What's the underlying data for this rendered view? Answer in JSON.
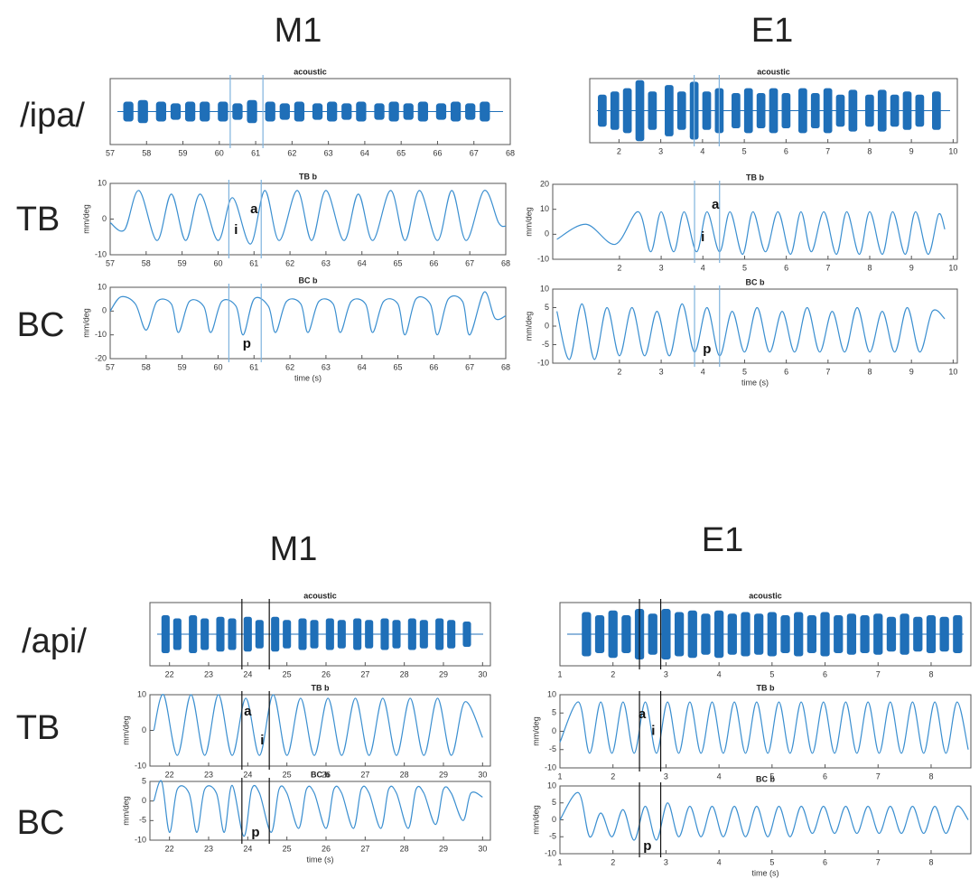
{
  "panels": [
    {
      "title": "M1",
      "row_labels": [
        "/ipa/",
        "TB",
        "BC"
      ]
    },
    {
      "title": "E1"
    },
    {
      "title": "M1",
      "row_labels": [
        "/api/",
        "TB",
        "BC"
      ]
    },
    {
      "title": "E1"
    }
  ],
  "chart_data": [
    {
      "type": "waveform",
      "title": "acoustic",
      "color": "#1f6fb8",
      "vline_color": "#7fb3de",
      "x": [
        57.5,
        57.9,
        58.4,
        58.8,
        59.2,
        59.6,
        60.1,
        60.5,
        60.9,
        61.4,
        61.8,
        62.2,
        62.7,
        63.1,
        63.5,
        63.9,
        64.4,
        64.8,
        65.2,
        65.6,
        66.1,
        66.5,
        66.9,
        67.3
      ],
      "values": [
        0.3,
        0.35,
        0.3,
        0.25,
        0.3,
        0.3,
        0.3,
        0.25,
        0.35,
        0.3,
        0.25,
        0.3,
        0.25,
        0.3,
        0.25,
        0.3,
        0.25,
        0.3,
        0.25,
        0.3,
        0.25,
        0.3,
        0.25,
        0.3
      ],
      "xlim": [
        57,
        68
      ],
      "ylim": [
        -1,
        1
      ],
      "xticks": [
        57,
        58,
        59,
        60,
        61,
        62,
        63,
        64,
        65,
        66,
        67,
        68
      ],
      "vlines": [
        60.3,
        61.2
      ]
    },
    {
      "type": "line",
      "title": "TB b",
      "ylabel": "mm/deg",
      "color": "#3b8fd0",
      "vline_color": "#7fb3de",
      "x": [
        57,
        57.4,
        57.8,
        58.3,
        58.7,
        59.1,
        59.5,
        60.0,
        60.4,
        60.9,
        61.3,
        61.7,
        62.2,
        62.6,
        63.0,
        63.5,
        63.9,
        64.3,
        64.8,
        65.2,
        65.6,
        66.1,
        66.5,
        66.9,
        67.4,
        67.8,
        68
      ],
      "values": [
        -1,
        -3,
        8,
        -6,
        7,
        -6,
        7,
        -6,
        6,
        -7,
        8,
        -6,
        8,
        -6,
        8,
        -6,
        7,
        -6,
        8,
        -6,
        8,
        -6,
        8,
        -6,
        8,
        -1,
        -2
      ],
      "xlim": [
        57,
        68
      ],
      "ylim": [
        -10,
        10
      ],
      "xticks": [
        57,
        58,
        59,
        60,
        61,
        62,
        63,
        64,
        65,
        66,
        67,
        68
      ],
      "yticks": [
        -10,
        0,
        10
      ],
      "vlines": [
        60.3,
        61.2
      ],
      "annotations": [
        {
          "text": "a",
          "x": 61.0,
          "y": 2.7
        },
        {
          "text": "i",
          "x": 60.5,
          "y": -3.2
        }
      ]
    },
    {
      "type": "line",
      "title": "BC b",
      "ylabel": "mm/deg",
      "xlabel": "time (s)",
      "color": "#3b8fd0",
      "vline_color": "#7fb3de",
      "x": [
        57,
        57.3,
        57.7,
        58.0,
        58.3,
        58.7,
        58.9,
        59.2,
        59.6,
        59.8,
        60.1,
        60.5,
        60.7,
        61.0,
        61.4,
        61.6,
        61.9,
        62.3,
        62.5,
        62.8,
        63.2,
        63.4,
        63.7,
        64.1,
        64.3,
        64.6,
        65.0,
        65.2,
        65.5,
        65.9,
        66.1,
        66.4,
        66.8,
        67.0,
        67.4,
        67.7,
        68
      ],
      "values": [
        0,
        6,
        3,
        -8,
        4,
        3,
        -9,
        4,
        2,
        -9,
        4,
        2,
        -10,
        5,
        2,
        -9,
        4,
        3,
        -9,
        4,
        3,
        -9,
        4,
        3,
        -9,
        4,
        3,
        -10,
        5,
        3,
        -10,
        5,
        4,
        -10,
        8,
        -3,
        -2
      ],
      "xlim": [
        57,
        68
      ],
      "ylim": [
        -20,
        10
      ],
      "xticks": [
        57,
        58,
        59,
        60,
        61,
        62,
        63,
        64,
        65,
        66,
        67,
        68
      ],
      "yticks": [
        -20,
        -10,
        0,
        10
      ],
      "vlines": [
        60.3,
        61.2
      ],
      "annotations": [
        {
          "text": "p",
          "x": 60.8,
          "y": -13.9
        }
      ]
    },
    {
      "type": "waveform",
      "title": "acoustic",
      "color": "#1f6fb8",
      "vline_color": "#7fb3de",
      "x": [
        1.6,
        1.9,
        2.2,
        2.5,
        2.8,
        3.2,
        3.5,
        3.8,
        4.1,
        4.4,
        4.8,
        5.1,
        5.4,
        5.7,
        6.0,
        6.4,
        6.7,
        7.0,
        7.3,
        7.6,
        8.0,
        8.3,
        8.6,
        8.9,
        9.2,
        9.6
      ],
      "values": [
        0.5,
        0.6,
        0.7,
        0.95,
        0.6,
        0.8,
        0.6,
        0.9,
        0.6,
        0.7,
        0.55,
        0.7,
        0.55,
        0.7,
        0.55,
        0.7,
        0.55,
        0.7,
        0.5,
        0.65,
        0.5,
        0.65,
        0.5,
        0.6,
        0.5,
        0.6
      ],
      "xlim": [
        1.3,
        10.1
      ],
      "ylim": [
        -1,
        1
      ],
      "xticks": [
        2,
        3,
        4,
        5,
        6,
        7,
        8,
        9,
        10
      ],
      "vlines": [
        3.8,
        4.4
      ]
    },
    {
      "type": "line",
      "title": "TB b",
      "ylabel": "mm/deg",
      "color": "#3b8fd0",
      "vline_color": "#7fb3de",
      "x": [
        0.5,
        1.2,
        1.9,
        2.45,
        2.75,
        3.0,
        3.3,
        3.55,
        3.85,
        4.1,
        4.4,
        4.65,
        4.95,
        5.2,
        5.5,
        5.8,
        6.1,
        6.35,
        6.6,
        6.9,
        7.2,
        7.45,
        7.75,
        8.0,
        8.3,
        8.55,
        8.85,
        9.1,
        9.4,
        9.65,
        9.8
      ],
      "values": [
        -2,
        4,
        -4,
        9,
        -7,
        9,
        -7,
        9,
        -7,
        9,
        -7,
        9,
        -8,
        9,
        -7,
        9,
        -8,
        9,
        -7,
        9,
        -8,
        9,
        -8,
        9,
        -8,
        9,
        -8,
        9,
        -8,
        8,
        2
      ],
      "xlim": [
        0.4,
        10.1
      ],
      "ylim": [
        -10,
        20
      ],
      "xticks": [
        2,
        3,
        4,
        5,
        6,
        7,
        8,
        9,
        10
      ],
      "yticks": [
        -10,
        0,
        10,
        20
      ],
      "vlines": [
        3.8,
        4.4
      ],
      "annotations": [
        {
          "text": "a",
          "x": 4.3,
          "y": 11.7
        },
        {
          "text": "i",
          "x": 4.0,
          "y": -1.3
        }
      ]
    },
    {
      "type": "line",
      "title": "BC b",
      "ylabel": "mm/deg",
      "xlabel": "time (s)",
      "color": "#3b8fd0",
      "vline_color": "#7fb3de",
      "x": [
        0.5,
        0.8,
        1.1,
        1.4,
        1.7,
        2.0,
        2.3,
        2.6,
        2.9,
        3.2,
        3.5,
        3.8,
        4.1,
        4.4,
        4.7,
        5.0,
        5.3,
        5.6,
        5.9,
        6.2,
        6.5,
        6.8,
        7.1,
        7.4,
        7.7,
        8.0,
        8.3,
        8.6,
        8.9,
        9.2,
        9.5,
        9.8
      ],
      "values": [
        4,
        -9,
        6,
        -9,
        5,
        -8,
        5,
        -8,
        4,
        -8,
        6,
        -7,
        5,
        -8,
        4,
        -7,
        5,
        -7,
        4,
        -7,
        5,
        -7,
        4,
        -7,
        5,
        -7,
        4,
        -7,
        5,
        -7,
        4,
        2
      ],
      "xlim": [
        0.4,
        10.1
      ],
      "ylim": [
        -10,
        10
      ],
      "xticks": [
        2,
        3,
        4,
        5,
        6,
        7,
        8,
        9,
        10
      ],
      "yticks": [
        -10,
        -5,
        0,
        5,
        10
      ],
      "vlines": [
        3.8,
        4.4
      ],
      "annotations": [
        {
          "text": "p",
          "x": 4.1,
          "y": -6.3
        }
      ]
    },
    {
      "type": "waveform",
      "title": "acoustic",
      "color": "#1f6fb8",
      "vline_color": "#111111",
      "x": [
        21.9,
        22.2,
        22.6,
        22.9,
        23.3,
        23.6,
        24.0,
        24.3,
        24.7,
        25.0,
        25.4,
        25.7,
        26.1,
        26.4,
        26.8,
        27.1,
        27.5,
        27.8,
        28.2,
        28.5,
        28.9,
        29.2,
        29.6
      ],
      "values": [
        0.6,
        0.5,
        0.6,
        0.5,
        0.55,
        0.5,
        0.55,
        0.45,
        0.55,
        0.45,
        0.5,
        0.45,
        0.5,
        0.45,
        0.5,
        0.45,
        0.5,
        0.45,
        0.5,
        0.45,
        0.5,
        0.45,
        0.4
      ],
      "xlim": [
        21.5,
        30.2
      ],
      "ylim": [
        -1,
        1
      ],
      "xticks": [
        22,
        23,
        24,
        25,
        26,
        27,
        28,
        29,
        30
      ],
      "vlines": [
        23.85,
        24.55
      ]
    },
    {
      "type": "line",
      "title": "TB b",
      "ylabel": "mm/deg",
      "color": "#3b8fd0",
      "vline_color": "#111111",
      "x": [
        21.6,
        21.85,
        22.2,
        22.55,
        22.9,
        23.25,
        23.6,
        23.95,
        24.3,
        24.65,
        25.0,
        25.35,
        25.7,
        26.05,
        26.4,
        26.75,
        27.1,
        27.45,
        27.8,
        28.15,
        28.5,
        28.85,
        29.2,
        29.55,
        30.0
      ],
      "values": [
        0,
        10,
        -7,
        10,
        -7,
        10,
        -7,
        9,
        -7,
        10,
        -7,
        9,
        -7,
        9,
        -7,
        9,
        -7,
        9,
        -7,
        9,
        -7,
        9,
        -7,
        8,
        -2
      ],
      "xlim": [
        21.5,
        30.2
      ],
      "ylim": [
        -10,
        10
      ],
      "xticks": [
        22,
        23,
        24,
        25,
        26,
        27,
        28,
        29,
        30
      ],
      "yticks": [
        -10,
        0,
        10
      ],
      "vlines": [
        23.85,
        24.55
      ],
      "annotations": [
        {
          "text": "a",
          "x": 24.0,
          "y": 5.2
        },
        {
          "text": "i",
          "x": 24.37,
          "y": -2.9
        }
      ]
    },
    {
      "type": "line",
      "title": "BC b",
      "ylabel": "mm/deg",
      "xlabel": "time (s)",
      "color": "#3b8fd0",
      "vline_color": "#111111",
      "x": [
        21.6,
        21.8,
        22.0,
        22.2,
        22.5,
        22.7,
        22.9,
        23.2,
        23.4,
        23.6,
        23.9,
        24.1,
        24.3,
        24.6,
        24.8,
        25.0,
        25.3,
        25.5,
        25.7,
        26.0,
        26.2,
        26.4,
        26.7,
        26.9,
        27.1,
        27.4,
        27.6,
        27.8,
        28.1,
        28.3,
        28.5,
        28.8,
        29.0,
        29.2,
        29.5,
        29.7,
        30.0
      ],
      "values": [
        0,
        5,
        -8,
        3,
        2,
        -8,
        3,
        2,
        -8,
        4,
        -9,
        3,
        2,
        -8,
        3,
        2,
        -7,
        3,
        2,
        -7,
        3,
        2,
        -7,
        3,
        2,
        -7,
        3,
        2,
        -7,
        3,
        2,
        -6,
        3,
        2,
        -5,
        2,
        1
      ],
      "xlim": [
        21.5,
        30.2
      ],
      "ylim": [
        -10,
        5
      ],
      "xticks": [
        22,
        23,
        24,
        25,
        26,
        27,
        28,
        29,
        30
      ],
      "yticks": [
        -10,
        -5,
        0,
        5
      ],
      "vlines": [
        23.85,
        24.55
      ],
      "annotations": [
        {
          "text": "p",
          "x": 24.2,
          "y": -8.2
        }
      ]
    },
    {
      "type": "waveform",
      "title": "acoustic",
      "color": "#1f6fb8",
      "vline_color": "#111111",
      "x": [
        1.5,
        1.75,
        2.0,
        2.25,
        2.5,
        2.75,
        3.0,
        3.25,
        3.5,
        3.75,
        4.0,
        4.25,
        4.5,
        4.75,
        5.0,
        5.25,
        5.5,
        5.75,
        6.0,
        6.25,
        6.5,
        6.75,
        7.0,
        7.25,
        7.5,
        7.75,
        8.0,
        8.25,
        8.5
      ],
      "values": [
        0.7,
        0.6,
        0.75,
        0.6,
        0.8,
        0.65,
        0.8,
        0.7,
        0.75,
        0.65,
        0.75,
        0.65,
        0.7,
        0.65,
        0.7,
        0.6,
        0.7,
        0.6,
        0.7,
        0.6,
        0.65,
        0.6,
        0.65,
        0.55,
        0.65,
        0.55,
        0.6,
        0.55,
        0.6
      ],
      "xlim": [
        1,
        8.75
      ],
      "ylim": [
        -1,
        1
      ],
      "xticks": [
        1,
        2,
        3,
        4,
        5,
        6,
        7,
        8
      ],
      "vlines": [
        2.5,
        2.9
      ]
    },
    {
      "type": "line",
      "title": "TB b",
      "ylabel": "mm/deg",
      "color": "#3b8fd0",
      "vline_color": "#111111",
      "x": [
        1.0,
        1.35,
        1.56,
        1.77,
        1.98,
        2.19,
        2.4,
        2.61,
        2.82,
        3.03,
        3.24,
        3.45,
        3.66,
        3.87,
        4.08,
        4.29,
        4.5,
        4.71,
        4.92,
        5.13,
        5.34,
        5.55,
        5.76,
        5.97,
        6.18,
        6.39,
        6.6,
        6.81,
        7.02,
        7.23,
        7.44,
        7.65,
        7.86,
        8.07,
        8.28,
        8.49,
        8.7
      ],
      "values": [
        -3,
        8,
        -6,
        8,
        -6,
        8,
        -6,
        8,
        -6,
        8,
        -6,
        8,
        -6,
        8,
        -6,
        8,
        -6,
        8,
        -6,
        8,
        -6,
        8,
        -6,
        8,
        -6,
        8,
        -6,
        8,
        -6,
        8,
        -6,
        8,
        -6,
        8,
        -6,
        8,
        -5
      ],
      "xlim": [
        1,
        8.75
      ],
      "ylim": [
        -10,
        10
      ],
      "xticks": [
        1,
        2,
        3,
        4,
        5,
        6,
        7,
        8
      ],
      "yticks": [
        -10,
        -5,
        0,
        5,
        10
      ],
      "vlines": [
        2.5,
        2.9
      ],
      "annotations": [
        {
          "text": "a",
          "x": 2.55,
          "y": 4.6
        },
        {
          "text": "i",
          "x": 2.76,
          "y": 0
        }
      ]
    },
    {
      "type": "line",
      "title": "BC b",
      "ylabel": "mm/deg",
      "xlabel": "time (s)",
      "color": "#3b8fd0",
      "vline_color": "#111111",
      "x": [
        1.0,
        1.35,
        1.56,
        1.77,
        1.98,
        2.19,
        2.4,
        2.61,
        2.82,
        3.03,
        3.24,
        3.45,
        3.66,
        3.87,
        4.08,
        4.29,
        4.5,
        4.71,
        4.92,
        5.13,
        5.34,
        5.55,
        5.76,
        5.97,
        6.18,
        6.39,
        6.6,
        6.81,
        7.02,
        7.23,
        7.44,
        7.65,
        7.86,
        8.07,
        8.28,
        8.49,
        8.7
      ],
      "values": [
        0,
        8,
        -5,
        2,
        -5,
        3,
        -6,
        4,
        -6,
        5,
        -5,
        4,
        -5,
        4,
        -5,
        4,
        -5,
        4,
        -5,
        4,
        -5,
        4,
        -4,
        4,
        -4,
        4,
        -4,
        4,
        -4,
        4,
        -4,
        4,
        -4,
        4,
        -4,
        4,
        0
      ],
      "xlim": [
        1,
        8.75
      ],
      "ylim": [
        -10,
        10
      ],
      "xticks": [
        1,
        2,
        3,
        4,
        5,
        6,
        7,
        8
      ],
      "yticks": [
        -10,
        -5,
        0,
        5,
        10
      ],
      "vlines": [
        2.5,
        2.9
      ],
      "annotations": [
        {
          "text": "p",
          "x": 2.65,
          "y": -7.9
        }
      ]
    }
  ]
}
